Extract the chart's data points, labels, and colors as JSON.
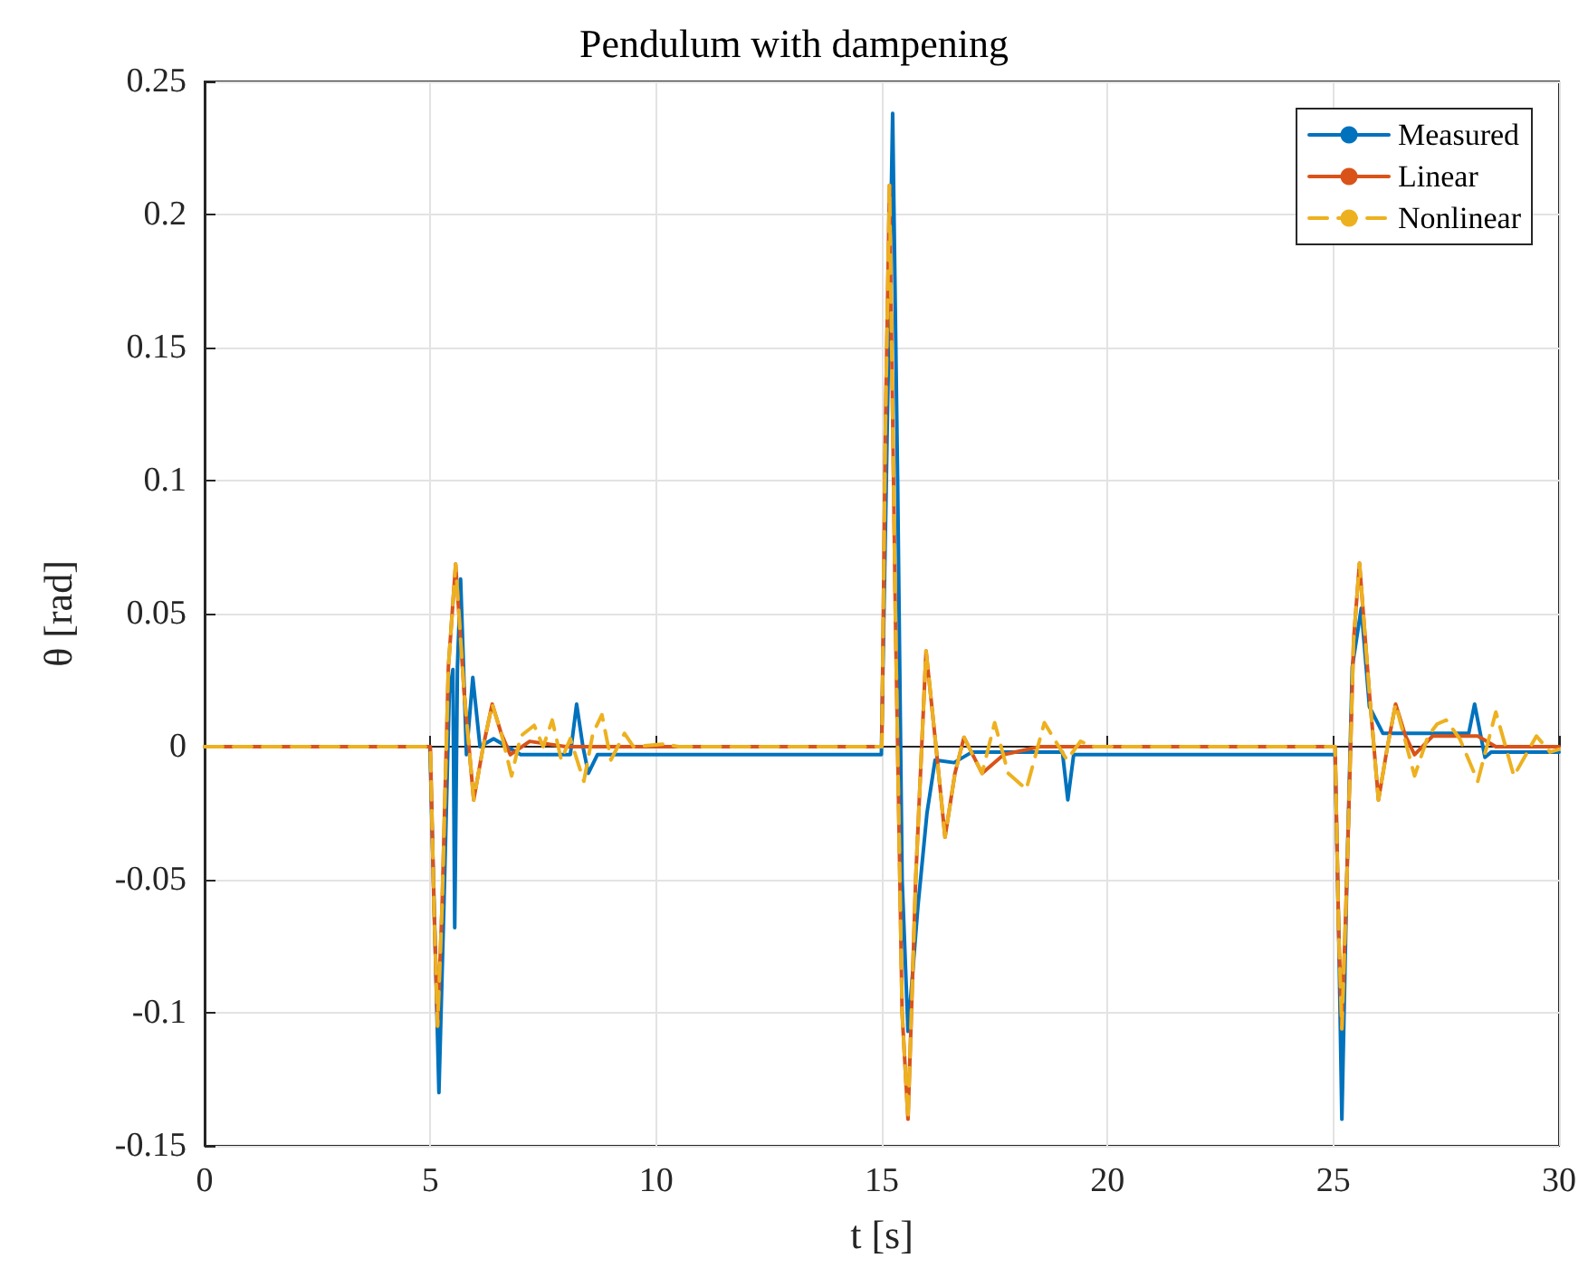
{
  "chart_data": {
    "type": "line",
    "title": "Pendulum with dampening",
    "xlabel": "t [s]",
    "ylabel": "θ [rad]",
    "xlim": [
      0,
      30
    ],
    "xticks": [
      0,
      5,
      10,
      15,
      20,
      25,
      30
    ],
    "ylim": [
      -0.15,
      0.25
    ],
    "yticks": [
      -0.15,
      -0.1,
      -0.05,
      0,
      0.05,
      0.1,
      0.15,
      0.2,
      0.25
    ],
    "grid": true,
    "legend": "top right",
    "marker": "none",
    "series": [
      {
        "name": "Measured",
        "color": "#0072bd",
        "line_style": "solid",
        "x": [
          0,
          4.99,
          5.1,
          5.19,
          5.3,
          5.42,
          5.5,
          5.54,
          5.6,
          5.67,
          5.8,
          5.94,
          6.1,
          6.4,
          6.7,
          7,
          8.1,
          8.24,
          8.38,
          8.5,
          8.7,
          14.99,
          15.1,
          15.24,
          15.35,
          15.45,
          15.58,
          15.8,
          16.0,
          16.18,
          16.6,
          17.0,
          19.0,
          19.12,
          19.25,
          25.04,
          25.12,
          25.19,
          25.3,
          25.42,
          25.62,
          25.8,
          26.1,
          28.0,
          28.13,
          28.36,
          28.5,
          30
        ],
        "values": [
          0,
          0,
          -0.07,
          -0.13,
          -0.06,
          0.02,
          0.029,
          -0.068,
          0.03,
          0.063,
          -0.003,
          0.026,
          0,
          0.003,
          0,
          -0.003,
          -0.003,
          0.016,
          0,
          -0.01,
          -0.003,
          -0.003,
          0.1,
          0.238,
          0.1,
          -0.05,
          -0.107,
          -0.06,
          -0.025,
          -0.005,
          -0.006,
          -0.002,
          -0.002,
          -0.02,
          -0.003,
          -0.003,
          -0.07,
          -0.14,
          -0.05,
          0.03,
          0.052,
          0.015,
          0.005,
          0.005,
          0.016,
          -0.004,
          -0.002,
          -0.002
        ]
      },
      {
        "name": "Linear",
        "color": "#d95319",
        "line_style": "solid",
        "x": [
          0,
          5.0,
          5.08,
          5.16,
          5.26,
          5.4,
          5.56,
          5.75,
          5.96,
          6.17,
          6.37,
          6.57,
          6.77,
          7.2,
          8,
          15,
          15.08,
          15.17,
          15.3,
          15.45,
          15.58,
          15.75,
          15.98,
          16.2,
          16.4,
          16.62,
          16.82,
          17.22,
          17.7,
          18.5,
          25.04,
          25.12,
          25.19,
          25.3,
          25.45,
          25.58,
          25.8,
          26.0,
          26.2,
          26.38,
          26.6,
          26.8,
          27.2,
          28.2,
          28.6,
          30
        ],
        "values": [
          0,
          0,
          -0.06,
          -0.105,
          -0.06,
          0.03,
          0.0686,
          0.02,
          -0.02,
          0,
          0.016,
          0.005,
          -0.003,
          0.002,
          0,
          0,
          0.12,
          0.211,
          0.05,
          -0.1,
          -0.14,
          -0.05,
          0.036,
          0,
          -0.034,
          -0.01,
          0.0035,
          -0.01,
          -0.003,
          0,
          0,
          -0.07,
          -0.106,
          -0.05,
          0.04,
          0.069,
          0.02,
          -0.02,
          0,
          0.016,
          0.004,
          -0.003,
          0.004,
          0.004,
          0,
          0
        ]
      },
      {
        "name": "Nonlinear",
        "color": "#edb120",
        "line_style": "dashed",
        "x": [
          0,
          5.0,
          5.08,
          5.16,
          5.26,
          5.4,
          5.56,
          5.75,
          5.96,
          6.17,
          6.37,
          6.57,
          6.8,
          7.0,
          7.3,
          7.5,
          7.7,
          7.9,
          8.1,
          8.4,
          8.6,
          8.8,
          9.0,
          9.3,
          9.5,
          10.2,
          10.5,
          15,
          15.08,
          15.17,
          15.3,
          15.45,
          15.58,
          15.75,
          15.98,
          16.2,
          16.4,
          16.62,
          16.82,
          17.22,
          17.5,
          17.8,
          18.2,
          18.6,
          19.1,
          19.4,
          19.7,
          25.04,
          25.12,
          25.19,
          25.3,
          25.45,
          25.58,
          25.8,
          26.0,
          26.2,
          26.38,
          26.8,
          27.1,
          27.3,
          27.5,
          27.8,
          28.2,
          28.6,
          29.0,
          29.5,
          29.8,
          30
        ],
        "values": [
          0,
          0,
          -0.06,
          -0.105,
          -0.06,
          0.03,
          0.0686,
          0.02,
          -0.02,
          0,
          0.016,
          0.005,
          -0.011,
          0.004,
          0.008,
          0,
          0.01,
          -0.005,
          0.003,
          -0.013,
          0.005,
          0.012,
          -0.005,
          0.005,
          0,
          0.001,
          0,
          0,
          0.12,
          0.211,
          0.05,
          -0.1,
          -0.14,
          -0.05,
          0.036,
          0,
          -0.034,
          -0.01,
          0.0035,
          -0.01,
          0.009,
          -0.01,
          -0.016,
          0.009,
          -0.005,
          0.002,
          0,
          0,
          -0.07,
          -0.106,
          -0.05,
          0.04,
          0.069,
          0.02,
          -0.02,
          0,
          0.016,
          -0.011,
          0.004,
          0.0085,
          0.01,
          0.003,
          -0.013,
          0.013,
          -0.011,
          0.004,
          -0.002,
          -0.001
        ]
      }
    ]
  }
}
